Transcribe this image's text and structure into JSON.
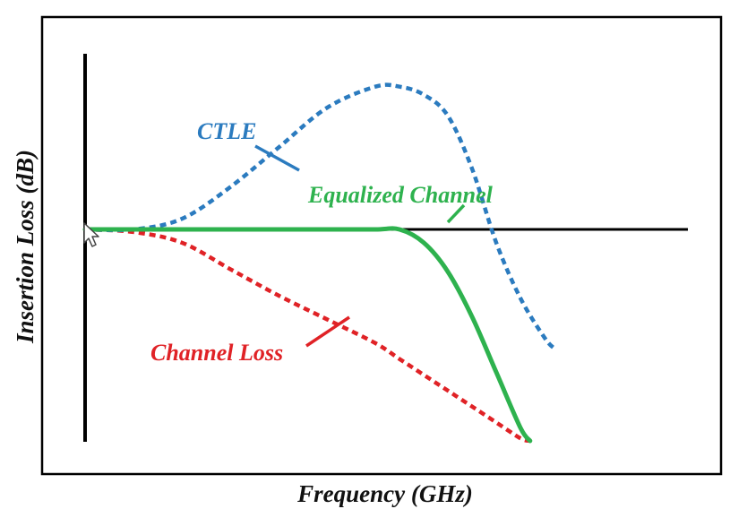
{
  "chart_data": {
    "type": "line",
    "xlabel": "Frequency (GHz)",
    "ylabel": "Insertion Loss (dB)",
    "grid": false,
    "x": [
      0,
      0.1,
      0.2,
      0.3,
      0.4,
      0.5,
      0.6,
      0.65,
      0.7,
      0.75,
      0.8,
      0.85,
      0.9,
      0.95,
      1.0
    ],
    "series": [
      {
        "name": "CTLE",
        "color": "#2b7bbf",
        "dash": "dotted",
        "points": [
          [
            0,
            0
          ],
          [
            0.1,
            0.0
          ],
          [
            0.2,
            0.4
          ],
          [
            0.3,
            1.6
          ],
          [
            0.4,
            3.1
          ],
          [
            0.5,
            4.6
          ],
          [
            0.6,
            5.4
          ],
          [
            0.65,
            5.4
          ],
          [
            0.7,
            5.1
          ],
          [
            0.75,
            4.3
          ],
          [
            0.8,
            2.3
          ],
          [
            0.85,
            -0.5
          ],
          [
            0.9,
            -2.6
          ],
          [
            0.95,
            -4.1
          ],
          [
            0.97,
            -4.5
          ]
        ]
      },
      {
        "name": "Equalized Channel",
        "color": "#2eb24e",
        "dash": "solid",
        "points": [
          [
            0,
            0
          ],
          [
            0.1,
            0
          ],
          [
            0.2,
            0
          ],
          [
            0.3,
            0
          ],
          [
            0.4,
            0
          ],
          [
            0.5,
            0
          ],
          [
            0.6,
            0
          ],
          [
            0.65,
            0
          ],
          [
            0.7,
            -0.5
          ],
          [
            0.75,
            -1.6
          ],
          [
            0.8,
            -3.3
          ],
          [
            0.85,
            -5.4
          ],
          [
            0.9,
            -7.5
          ],
          [
            0.92,
            -8.0
          ]
        ]
      },
      {
        "name": "Channel Loss",
        "color": "#e02226",
        "dash": "dotted",
        "points": [
          [
            0,
            0
          ],
          [
            0.1,
            -0.1
          ],
          [
            0.2,
            -0.5
          ],
          [
            0.3,
            -1.5
          ],
          [
            0.4,
            -2.5
          ],
          [
            0.5,
            -3.4
          ],
          [
            0.6,
            -4.3
          ],
          [
            0.65,
            -4.9
          ],
          [
            0.7,
            -5.5
          ],
          [
            0.75,
            -6.1
          ],
          [
            0.8,
            -6.7
          ],
          [
            0.85,
            -7.3
          ],
          [
            0.9,
            -7.9
          ],
          [
            0.92,
            -8.0
          ]
        ]
      }
    ],
    "annotations": [
      {
        "text": "CTLE",
        "color": "#2b7bbf"
      },
      {
        "text": "Equalized Channel",
        "color": "#2eb24e"
      },
      {
        "text": "Channel Loss",
        "color": "#e02226"
      }
    ]
  }
}
